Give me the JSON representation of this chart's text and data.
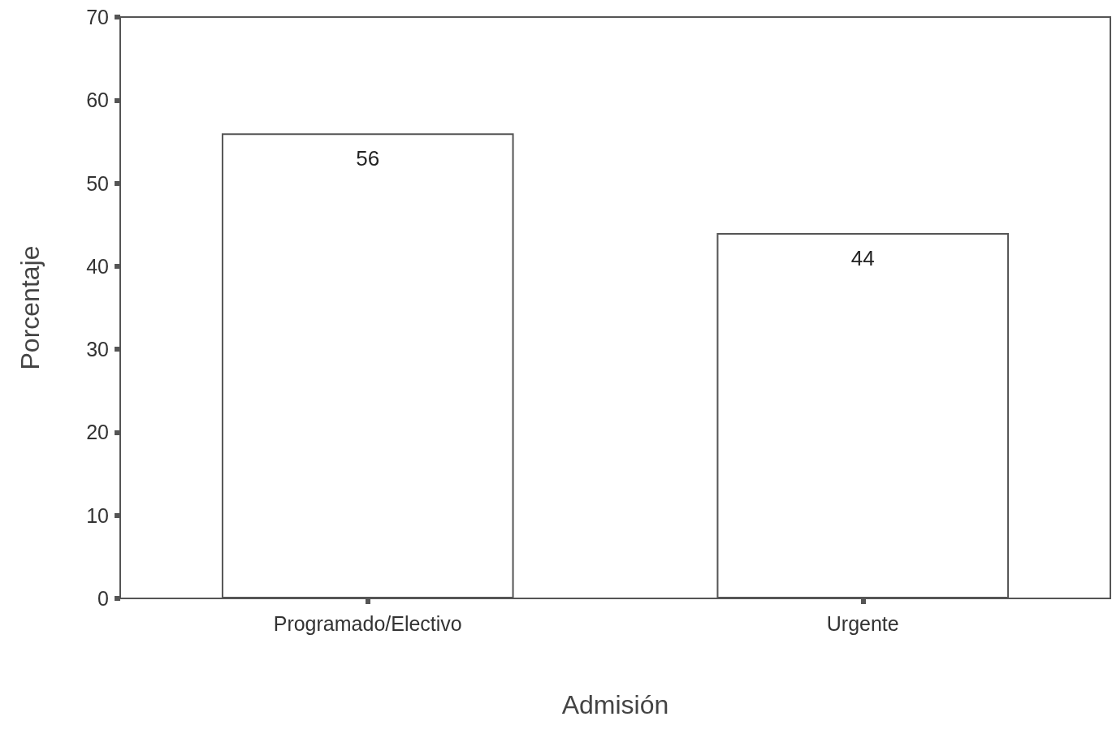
{
  "chart_data": {
    "type": "bar",
    "xlabel": "Admisión",
    "ylabel": "Porcentaje",
    "categories": [
      "Programado/Electivo",
      "Urgente"
    ],
    "values": [
      56,
      44
    ],
    "color": "#ffffff",
    "ylim": [
      0,
      70
    ],
    "yticks": [
      0,
      10,
      20,
      30,
      40,
      50,
      60,
      70
    ],
    "grid": false,
    "data_labels": true
  }
}
